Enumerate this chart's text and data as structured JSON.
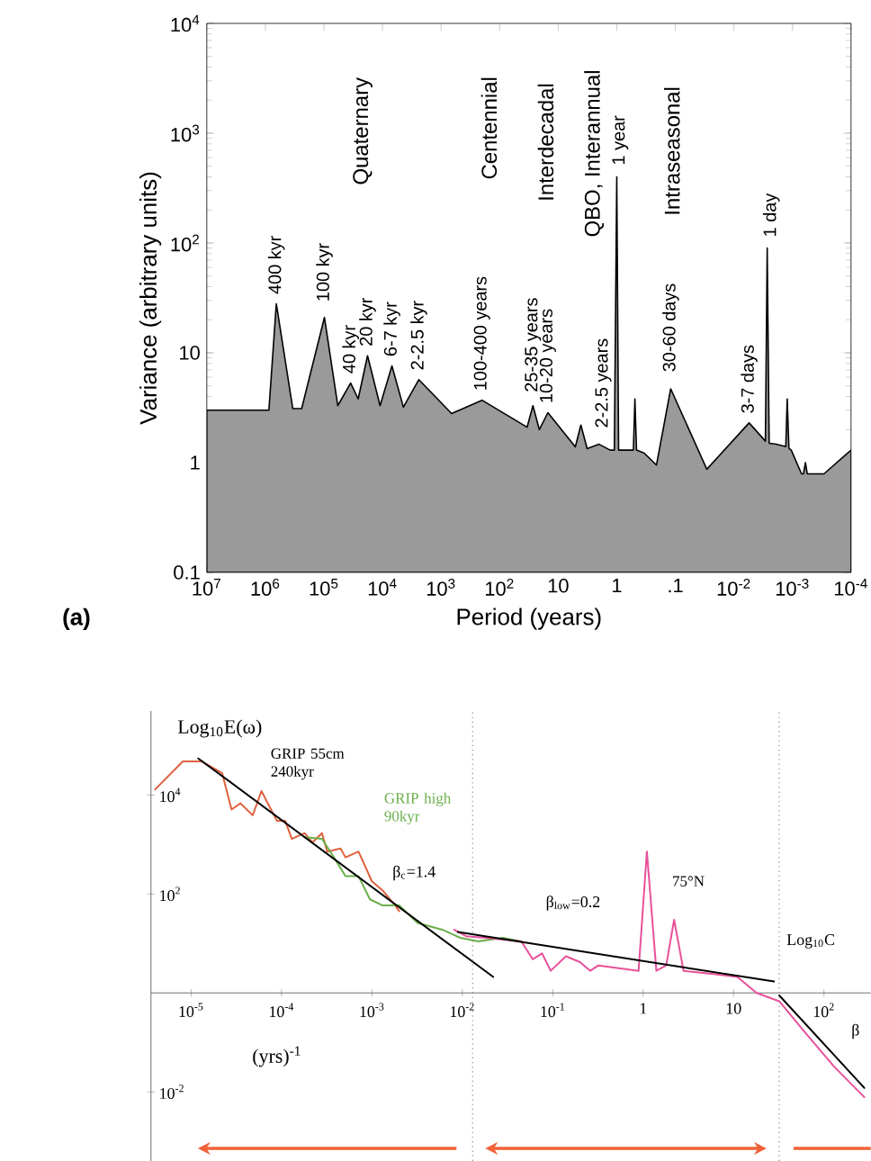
{
  "chart_data": [
    {
      "type": "area",
      "xlabel": "Period (years)",
      "ylabel": "Variance (arbitrary units)",
      "log": "xy",
      "xlim": [
        10000000,
        0.0001
      ],
      "ylim": [
        0.1,
        10000
      ],
      "xticks": [
        {
          "value": 10000000,
          "label": "10$^{7}$"
        },
        {
          "value": 1000000,
          "label": "10$^{6}$"
        },
        {
          "value": 100000,
          "label": "10$^{5}$"
        },
        {
          "value": 10000,
          "label": "10$^{4}$"
        },
        {
          "value": 1000,
          "label": "10$^{3}$"
        },
        {
          "value": 100,
          "label": "10$^{2}$"
        },
        10,
        1,
        {
          "value": 0.1,
          "label": ".1"
        },
        {
          "value": 0.01,
          "label": "10$^{-2}$"
        },
        {
          "value": 0.001,
          "label": "10$^{-3}$"
        },
        {
          "value": 0.0001,
          "label": "10$^{-4}$"
        }
      ],
      "yticks": [
        0.1,
        1,
        10,
        {
          "value": 100,
          "label": "10$^{2}$"
        },
        {
          "value": 1000,
          "label": "10$^{3}$"
        },
        {
          "value": 10000,
          "label": "10$^{4}$"
        }
      ],
      "color": "#9a9a9a",
      "x": [
        10000000.0,
        870000.0,
        650000.0,
        340000.0,
        240000.0,
        98000.0,
        58000.0,
        35000.0,
        26000.0,
        18000.0,
        11000.0,
        6900,
        4400,
        2400,
        660,
        200,
        34,
        27,
        21,
        15,
        5.1,
        4.1,
        3.2,
        2.0,
        1.3,
        1.1,
        1.0,
        0.93,
        0.78,
        0.52,
        0.49,
        0.46,
        0.34,
        0.21,
        0.12,
        0.029,
        0.0055,
        0.0029,
        0.0027,
        0.0025,
        0.0019,
        0.0013,
        0.00123,
        0.00115,
        0.00105,
        0.0007,
        0.00065,
        0.0006,
        0.00056,
        0.00046,
        0.00029,
        0.0001
      ],
      "values": [
        3,
        3,
        28,
        3.1,
        3.1,
        21,
        3.3,
        5.3,
        3.8,
        9.4,
        3.3,
        7.6,
        3.2,
        5.7,
        2.8,
        3.7,
        2.1,
        3.3,
        2.0,
        2.85,
        1.39,
        2.2,
        1.34,
        1.47,
        1.3,
        1.3,
        400,
        1.3,
        1.3,
        1.3,
        3.8,
        1.3,
        1.22,
        0.95,
        4.7,
        0.87,
        2.3,
        1.57,
        90,
        1.5,
        1.47,
        1.4,
        3.8,
        1.35,
        1.3,
        0.79,
        0.79,
        1.0,
        0.79,
        0.79,
        0.79,
        1.3
      ],
      "annotations": [
        {
          "text": "400 kyr",
          "x": 650000,
          "y": 28
        },
        {
          "text": "100 kyr",
          "x": 98000,
          "y": 24
        },
        {
          "text": "40 kyr",
          "x": 35000,
          "y": 5.3
        },
        {
          "text": "20 kyr",
          "x": 18000,
          "y": 9.4
        },
        {
          "text": "6-7 kyr",
          "x": 6900,
          "y": 7.6
        },
        {
          "text": "2-2.5 kyr",
          "x": 2400,
          "y": 5.7
        },
        {
          "text": "100-400 years",
          "x": 200,
          "y": 3.7
        },
        {
          "text": "25-35 years",
          "x": 27,
          "y": 3.6
        },
        {
          "text": "10-20 years",
          "x": 15,
          "y": 2.85
        },
        {
          "text": "2-2.5 years",
          "x": 1.7,
          "y": 1.7
        },
        {
          "text": "1 year",
          "x": 0.87,
          "y": 420
        },
        {
          "text": "30-60 days",
          "x": 0.12,
          "y": 5.5
        },
        {
          "text": "3-7 days",
          "x": 0.0055,
          "y": 2.3
        },
        {
          "text": "1 day",
          "x": 0.0023,
          "y": 93
        },
        "Quaternary",
        "Centennial",
        "Interdecadal",
        "QBO, Interannual",
        "Intraseasonal",
        "(a)"
      ]
    },
    {
      "type": "line",
      "xlabel": "(yrs)$^{-1}$",
      "ylabel": "Log$_{10}$E(ω)",
      "log": "xy",
      "xlim": [
        3.6e-06,
        330
      ],
      "ylim": [
        0.0004,
        500000
      ],
      "xticks": [
        {
          "value": 1e-05,
          "label": "10$^{-5}$"
        },
        {
          "value": 0.0001,
          "label": "10$^{-4}$"
        },
        {
          "value": 0.001,
          "label": "10$^{-3}$"
        },
        {
          "value": 0.01,
          "label": "10$^{-2}$"
        },
        {
          "value": 0.1,
          "label": "10$^{-1}$"
        },
        1,
        10,
        {
          "value": 100,
          "label": "10$^{2}$"
        }
      ],
      "yticks": [
        {
          "value": 0.01,
          "label": "10$^{-2}$"
        },
        {
          "value": 100,
          "label": "10$^{2}$"
        },
        {
          "value": 10000,
          "label": "10$^{4}$"
        }
      ],
      "series": [
        {
          "name": "GRIP 55cm 240kyr",
          "color": "#e0603e",
          "x": [
            4e-06,
            8.1e-06,
            1.3e-05,
            2.2e-05,
            2.8e-05,
            3.5e-05,
            4.8e-05,
            6e-05,
            8.9e-05,
            0.00011,
            0.00013,
            0.00018,
            0.00022,
            0.00028,
            0.00032,
            0.00045,
            0.00051,
            0.00071,
            0.001,
            0.0013,
            0.0018,
            0.002
          ],
          "values": [
            13000,
            48000,
            48000,
            28000,
            5100,
            6800,
            3900,
            12000,
            3000,
            3000,
            1300,
            1700,
            1100,
            1700,
            720,
            830,
            550,
            720,
            180,
            120,
            59,
            45
          ]
        },
        {
          "name": "GRIP high 90kyr",
          "color": "#6aaf4a",
          "x": [
            0.00018,
            0.00028,
            0.00038,
            0.00051,
            0.00071,
            0.00095,
            0.0013,
            0.002,
            0.0032,
            0.006,
            0.0095,
            0.015,
            0.028,
            0.045
          ],
          "values": [
            1400,
            1300,
            550,
            230,
            230,
            78,
            59,
            59,
            26,
            19,
            13,
            11,
            13,
            11
          ]
        },
        {
          "name": "75°N",
          "color": "#e8509a",
          "x": [
            0.0081,
            0.011,
            0.018,
            0.045,
            0.06,
            0.076,
            0.095,
            0.14,
            0.2,
            0.26,
            0.32,
            0.51,
            0.89,
            1.1,
            1.4,
            1.8,
            2.2,
            2.8,
            6.0,
            11,
            18,
            32,
            60,
            130,
            280
          ],
          "values": [
            19,
            14,
            13,
            11,
            4.8,
            6.3,
            2.8,
            5.5,
            4.2,
            2.8,
            3.6,
            3.2,
            2.8,
            720,
            2.8,
            3.6,
            30,
            2.8,
            2.4,
            2.1,
            1.0,
            0.68,
            0.17,
            0.032,
            0.0078
          ]
        },
        {
          "color": "#000000",
          "x": [
            1.2e-05,
            0.022
          ],
          "values": [
            55000,
            2.1
          ]
        },
        {
          "color": "#000000",
          "x": [
            0.0089,
            28
          ],
          "values": [
            17,
            1.7
          ]
        },
        {
          "color": "#000000",
          "x": [
            32,
            280
          ],
          "values": [
            0.89,
            0.012
          ]
        }
      ],
      "ref_lines": [
        {
          "axis": "x",
          "value": 0.013,
          "color": "#888888",
          "line_style": "dotted"
        },
        {
          "axis": "x",
          "value": 32,
          "color": "#888888",
          "line_style": "dotted"
        }
      ],
      "annotations": [
        "β$_{c}$=1.4",
        "β$_{low}$=0.2",
        "Log$_{10}$C",
        "β"
      ]
    }
  ]
}
